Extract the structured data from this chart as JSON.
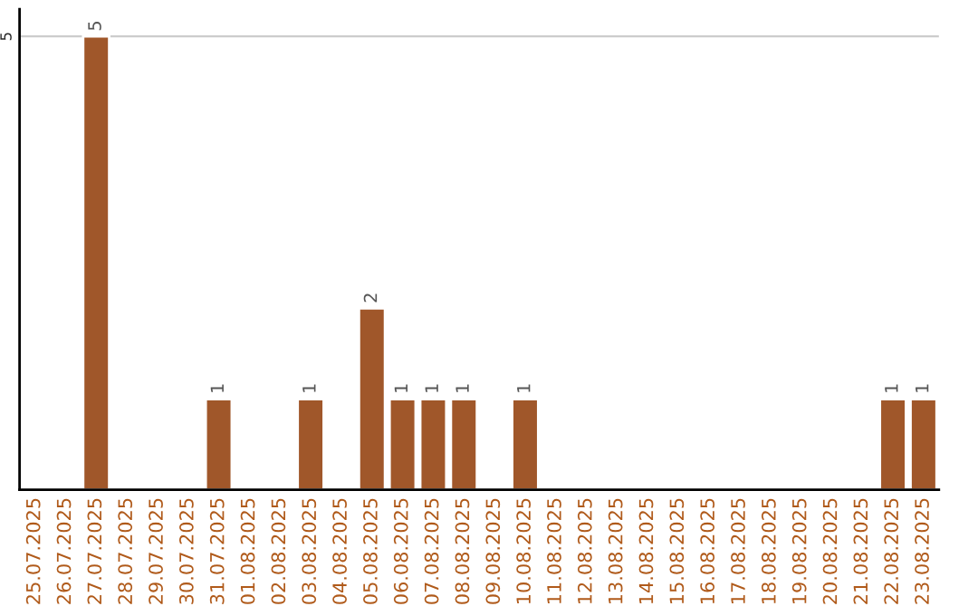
{
  "chart_data": {
    "type": "bar",
    "categories": [
      "25.07.2025",
      "26.07.2025",
      "27.07.2025",
      "28.07.2025",
      "29.07.2025",
      "30.07.2025",
      "31.07.2025",
      "01.08.2025",
      "02.08.2025",
      "03.08.2025",
      "04.08.2025",
      "05.08.2025",
      "06.08.2025",
      "07.08.2025",
      "08.08.2025",
      "09.08.2025",
      "10.08.2025",
      "11.08.2025",
      "12.08.2025",
      "13.08.2025",
      "14.08.2025",
      "15.08.2025",
      "16.08.2025",
      "17.08.2025",
      "18.08.2025",
      "19.08.2025",
      "20.08.2025",
      "21.08.2025",
      "22.08.2025",
      "23.08.2025"
    ],
    "values": [
      null,
      null,
      5,
      null,
      null,
      null,
      1,
      null,
      null,
      1,
      null,
      2,
      1,
      1,
      1,
      null,
      1,
      null,
      null,
      null,
      null,
      null,
      null,
      null,
      null,
      null,
      null,
      null,
      1,
      1
    ],
    "value_labels": [
      null,
      null,
      "5",
      null,
      null,
      null,
      "1",
      null,
      null,
      "1",
      null,
      "2",
      "1",
      "1",
      "1",
      null,
      "1",
      null,
      null,
      null,
      null,
      null,
      null,
      null,
      null,
      null,
      null,
      null,
      "1",
      "1"
    ],
    "color": "#a0572a",
    "ylim": [
      0,
      5.3
    ],
    "yticks": [
      5
    ],
    "grid": "y"
  }
}
